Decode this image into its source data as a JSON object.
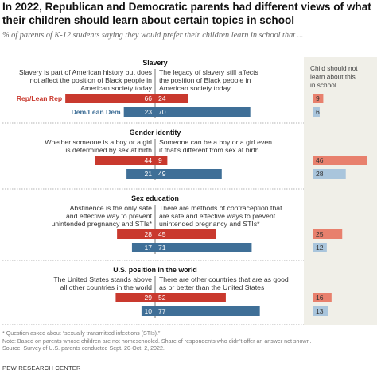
{
  "title": "In 2022, Republican and Democratic parents had different views of what their children should learn about certain topics in school",
  "subtitle": "% of parents of K-12 students saying they would prefer their children learn in school that ...",
  "colors": {
    "rep": "#c9392e",
    "dem": "#3f6f97",
    "rep_light": "#e8806d",
    "dem_light": "#a9c5dc",
    "panel": "#f0efe8",
    "divider": "#9a9a9a"
  },
  "chart_data": {
    "type": "bar",
    "series": [
      {
        "name": "Rep/Lean Rep"
      },
      {
        "name": "Dem/Lean Dem"
      }
    ],
    "right_column_label": [
      "Child should not",
      "learn about this",
      "in school"
    ],
    "sections": [
      {
        "heading": "Slavery",
        "left_label": [
          "Slavery is part of American history but does",
          "not affect the position of Black people in",
          "American society today"
        ],
        "right_label": [
          "The legacy of slavery still affects",
          "the position of Black people in",
          "American society today"
        ],
        "rep": {
          "left": 66,
          "right": 24,
          "should_not": 9
        },
        "dem": {
          "left": 23,
          "right": 70,
          "should_not": 6
        }
      },
      {
        "heading": "Gender identity",
        "left_label": [
          "Whether someone is a boy or a girl",
          "is determined by sex at birth"
        ],
        "right_label": [
          "Someone can be a boy or a girl even",
          "if that's different from sex at birth"
        ],
        "rep": {
          "left": 44,
          "right": 9,
          "should_not": 46
        },
        "dem": {
          "left": 21,
          "right": 49,
          "should_not": 28
        }
      },
      {
        "heading": "Sex education",
        "left_label": [
          "Abstinence is the only safe",
          "and effective way to prevent",
          "unintended pregnancy and STIs*"
        ],
        "right_label": [
          "There are methods of contraception that",
          "are safe and effective ways to prevent",
          "unintended pregnancy and STIs*"
        ],
        "rep": {
          "left": 28,
          "right": 45,
          "should_not": 25
        },
        "dem": {
          "left": 17,
          "right": 71,
          "should_not": 12
        }
      },
      {
        "heading": "U.S. position in the world",
        "left_label": [
          "The United States stands above",
          "all other countries in the world"
        ],
        "right_label": [
          "There are other countries that are as good",
          "as or better than the United States"
        ],
        "rep": {
          "left": 29,
          "right": 52,
          "should_not": 16
        },
        "dem": {
          "left": 10,
          "right": 77,
          "should_not": 13
        }
      }
    ]
  },
  "notes": [
    "* Question asked about “sexually transmitted infections (STIs).”",
    "Note: Based on parents whose children are not homeschooled. Share of respondents who didn't offer an answer not shown.",
    "Source: Survey of U.S. parents conducted Sept. 20-Oct. 2, 2022."
  ],
  "source_credit": "PEW RESEARCH CENTER"
}
